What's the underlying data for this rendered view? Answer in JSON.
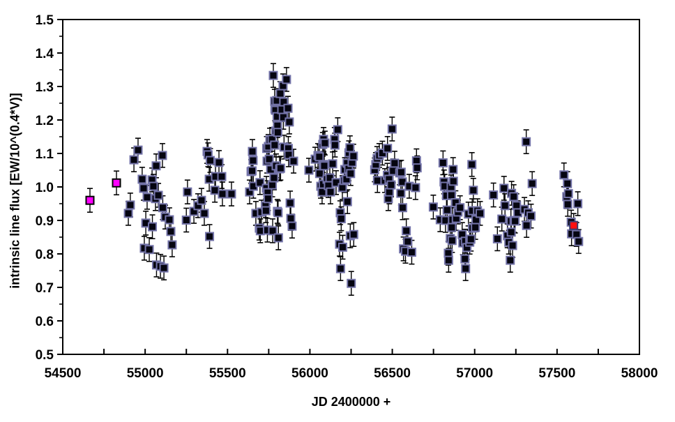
{
  "chart_data": {
    "type": "scatter",
    "title": "",
    "xlabel": "JD 2400000 +",
    "ylabel": "intrinsic line flux [EW/10^(0.4*V)]",
    "xlim": [
      54500,
      58000
    ],
    "ylim": [
      0.5,
      1.5
    ],
    "grid": false,
    "legend_position": "none",
    "x_tick_labels": [
      "54500",
      "55000",
      "55500",
      "56000",
      "56500",
      "57000",
      "57500",
      "58000"
    ],
    "x_major_ticks": [
      54500,
      55000,
      55500,
      56000,
      56500,
      57000,
      57500,
      58000
    ],
    "x_minor_step": 250,
    "y_tick_labels": [
      "0.5",
      "0.6",
      "0.7",
      "0.8",
      "0.9",
      "1.0",
      "1.1",
      "1.2",
      "1.3",
      "1.4",
      "1.5"
    ],
    "y_major_ticks": [
      0.5,
      0.6,
      0.7,
      0.8,
      0.9,
      1.0,
      1.1,
      1.2,
      1.3,
      1.4,
      1.5
    ],
    "y_minor_step": 0.05,
    "marker": {
      "size": 11,
      "error": 0.024,
      "error_color": "#000000",
      "cap_width": 8
    },
    "series": [
      {
        "name": "black-squares",
        "fill": "#050510",
        "stroke": "#7373a8",
        "points": [
          [
            54898,
            0.921
          ],
          [
            54910,
            0.946
          ],
          [
            54932,
            1.081
          ],
          [
            54957,
            1.11
          ],
          [
            54982,
            1.023
          ],
          [
            54991,
            0.996
          ],
          [
            54995,
            0.817
          ],
          [
            55004,
            0.892
          ],
          [
            55012,
            0.969
          ],
          [
            55025,
            0.813
          ],
          [
            55042,
            1.021
          ],
          [
            55044,
            0.881
          ],
          [
            55050,
            1.002
          ],
          [
            55063,
            0.965
          ],
          [
            55067,
            1.063
          ],
          [
            55069,
            0.767
          ],
          [
            55080,
            0.975
          ],
          [
            55093,
            0.763
          ],
          [
            55105,
            1.094
          ],
          [
            55107,
            0.938
          ],
          [
            55114,
            0.758
          ],
          [
            55122,
            0.91
          ],
          [
            55147,
            0.902
          ],
          [
            55156,
            0.867
          ],
          [
            55164,
            0.827
          ],
          [
            55250,
            0.901
          ],
          [
            55257,
            0.985
          ],
          [
            55296,
            0.927
          ],
          [
            55321,
            0.944
          ],
          [
            55342,
            0.96
          ],
          [
            55359,
            0.921
          ],
          [
            55376,
            1.106
          ],
          [
            55382,
            1.096
          ],
          [
            55389,
            1.023
          ],
          [
            55391,
            0.852
          ],
          [
            55395,
            1.079
          ],
          [
            55423,
            0.99
          ],
          [
            55427,
            1.031
          ],
          [
            55448,
            1.073
          ],
          [
            55465,
            1.031
          ],
          [
            55469,
            0.979
          ],
          [
            55524,
            0.979
          ],
          [
            55634,
            0.985
          ],
          [
            55643,
            1.046
          ],
          [
            55649,
            1.048
          ],
          [
            55651,
            1.106
          ],
          [
            55655,
            1.079
          ],
          [
            55657,
            1.002
          ],
          [
            55672,
            0.921
          ],
          [
            55693,
            0.877
          ],
          [
            55697,
            1.013
          ],
          [
            55699,
            0.869
          ],
          [
            55706,
            0.925
          ],
          [
            55731,
            0.944
          ],
          [
            55733,
            0.929
          ],
          [
            55736,
            0.996
          ],
          [
            55738,
            1.115
          ],
          [
            55740,
            1.077
          ],
          [
            55742,
            0.871
          ],
          [
            55744,
            0.983
          ],
          [
            55746,
            0.965
          ],
          [
            55748,
            1.121
          ],
          [
            55753,
            1.083
          ],
          [
            55757,
            1.14
          ],
          [
            55762,
            1.052
          ],
          [
            55770,
            1.142
          ],
          [
            55772,
            1.006
          ],
          [
            55774,
            0.869
          ],
          [
            55778,
            1.333
          ],
          [
            55782,
            1.027
          ],
          [
            55786,
            1.256
          ],
          [
            55788,
            1.233
          ],
          [
            55786,
            1.125
          ],
          [
            55791,
            1.229
          ],
          [
            55793,
            1.167
          ],
          [
            55795,
            1.063
          ],
          [
            55799,
            1.258
          ],
          [
            55801,
            1.21
          ],
          [
            55803,
            1.183
          ],
          [
            55805,
            1.163
          ],
          [
            55803,
            0.927
          ],
          [
            55807,
            0.923
          ],
          [
            55809,
            0.848
          ],
          [
            55816,
            1.054
          ],
          [
            55820,
            1.279
          ],
          [
            55822,
            1.056
          ],
          [
            55829,
            1.231
          ],
          [
            55837,
            1.302
          ],
          [
            55839,
            1.208
          ],
          [
            55841,
            1.254
          ],
          [
            55843,
            1.119
          ],
          [
            55858,
            1.321
          ],
          [
            55867,
            1.235
          ],
          [
            55869,
            1.115
          ],
          [
            55871,
            1.096
          ],
          [
            55875,
            1.194
          ],
          [
            55880,
            0.952
          ],
          [
            55884,
            0.906
          ],
          [
            55892,
            0.883
          ],
          [
            55901,
            1.077
          ],
          [
            55994,
            1.05
          ],
          [
            56032,
            1.083
          ],
          [
            56049,
            1.094
          ],
          [
            56057,
            1.09
          ],
          [
            56059,
            1.04
          ],
          [
            56066,
            1.002
          ],
          [
            56074,
            0.985
          ],
          [
            56078,
            1.127
          ],
          [
            56080,
            1.008
          ],
          [
            56082,
            1.067
          ],
          [
            56083,
            1.142
          ],
          [
            56087,
            1.063
          ],
          [
            56091,
            1.131
          ],
          [
            56104,
            1.023
          ],
          [
            56112,
            1.004
          ],
          [
            56121,
            1.027
          ],
          [
            56125,
            0.985
          ],
          [
            56138,
            1.069
          ],
          [
            56150,
            1.142
          ],
          [
            56152,
            1.125
          ],
          [
            56159,
            1.013
          ],
          [
            56169,
            1.171
          ],
          [
            56180,
            0.829
          ],
          [
            56184,
            0.923
          ],
          [
            56186,
            0.756
          ],
          [
            56190,
            0.905
          ],
          [
            56197,
            0.998
          ],
          [
            56199,
            0.82
          ],
          [
            56209,
            1.019
          ],
          [
            56212,
            1.052
          ],
          [
            56222,
            1.023
          ],
          [
            56226,
            1.071
          ],
          [
            56228,
            0.956
          ],
          [
            56235,
            1.054
          ],
          [
            56237,
            1.102
          ],
          [
            56243,
            1.117
          ],
          [
            56245,
            0.854
          ],
          [
            56247,
            1.04
          ],
          [
            56251,
            0.712
          ],
          [
            56256,
            1.073
          ],
          [
            56264,
            1.092
          ],
          [
            56266,
            0.858
          ],
          [
            56393,
            1.051
          ],
          [
            56400,
            1.067
          ],
          [
            56408,
            1.085
          ],
          [
            56410,
            1.019
          ],
          [
            56421,
            1.094
          ],
          [
            56440,
            1.101
          ],
          [
            56455,
            1.019
          ],
          [
            56470,
            1.035
          ],
          [
            56471,
            1.115
          ],
          [
            56476,
            0.965
          ],
          [
            56480,
            1.023
          ],
          [
            56482,
            0.985
          ],
          [
            56493,
            1.006
          ],
          [
            56499,
            1.173
          ],
          [
            56505,
            1.048
          ],
          [
            56514,
            1.071
          ],
          [
            56545,
            1.042
          ],
          [
            56552,
            0.981
          ],
          [
            56554,
            1.044
          ],
          [
            56561,
            1.015
          ],
          [
            56563,
            0.938
          ],
          [
            56568,
            0.815
          ],
          [
            56580,
            0.808
          ],
          [
            56585,
            0.869
          ],
          [
            56594,
            0.837
          ],
          [
            56603,
            1.002
          ],
          [
            56618,
            0.805
          ],
          [
            56641,
            0.998
          ],
          [
            56647,
            1.078
          ],
          [
            56651,
            1.057
          ],
          [
            56749,
            0.94
          ],
          [
            56791,
            0.902
          ],
          [
            56808,
            1.072
          ],
          [
            56814,
            1.015
          ],
          [
            56818,
            1.002
          ],
          [
            56823,
            0.9
          ],
          [
            56829,
            0.974
          ],
          [
            56833,
            0.931
          ],
          [
            56840,
            0.802
          ],
          [
            56842,
            0.781
          ],
          [
            56852,
            0.846
          ],
          [
            56857,
            1.0
          ],
          [
            56859,
            0.975
          ],
          [
            56861,
            0.879
          ],
          [
            56863,
            0.84
          ],
          [
            56865,
            0.902
          ],
          [
            56869,
            1.052
          ],
          [
            56871,
            1.017
          ],
          [
            56884,
            0.953
          ],
          [
            56888,
            0.906
          ],
          [
            56899,
            0.925
          ],
          [
            56911,
            0.938
          ],
          [
            56924,
            0.858
          ],
          [
            56928,
            0.833
          ],
          [
            56941,
            0.785
          ],
          [
            56943,
            0.838
          ],
          [
            56945,
            0.756
          ],
          [
            56953,
            0.819
          ],
          [
            56962,
            0.919
          ],
          [
            56970,
            0.835
          ],
          [
            56977,
            0.844
          ],
          [
            56983,
            1.067
          ],
          [
            56985,
            0.929
          ],
          [
            56987,
            0.877
          ],
          [
            56992,
            0.99
          ],
          [
            57004,
            0.879
          ],
          [
            57008,
            0.902
          ],
          [
            57017,
            0.929
          ],
          [
            57033,
            0.921
          ],
          [
            57114,
            0.976
          ],
          [
            57138,
            0.845
          ],
          [
            57165,
            0.904
          ],
          [
            57178,
            0.996
          ],
          [
            57184,
            0.944
          ],
          [
            57199,
            0.854
          ],
          [
            57207,
            0.835
          ],
          [
            57216,
            0.781
          ],
          [
            57220,
            0.898
          ],
          [
            57222,
            0.865
          ],
          [
            57224,
            0.981
          ],
          [
            57230,
            0.825
          ],
          [
            57237,
            0.971
          ],
          [
            57239,
            0.9
          ],
          [
            57245,
            0.898
          ],
          [
            57254,
            0.944
          ],
          [
            57262,
            0.923
          ],
          [
            57302,
            0.933
          ],
          [
            57313,
            1.135
          ],
          [
            57315,
            0.885
          ],
          [
            57325,
            0.923
          ],
          [
            57342,
            0.913
          ],
          [
            57349,
            1.01
          ],
          [
            57542,
            1.036
          ],
          [
            57559,
            0.971
          ],
          [
            57563,
            1.01
          ],
          [
            57565,
            0.948
          ],
          [
            57569,
            0.98
          ],
          [
            57586,
            0.895
          ],
          [
            57588,
            0.86
          ],
          [
            57618,
            0.858
          ],
          [
            57626,
            0.95
          ],
          [
            57631,
            0.837
          ]
        ]
      },
      {
        "name": "magenta-squares",
        "fill": "#ff00ff",
        "stroke": "#000000",
        "points": [
          [
            54665,
            0.96
          ],
          [
            54826,
            1.012
          ]
        ]
      },
      {
        "name": "red-square",
        "fill": "#ff1010",
        "stroke": "#3a3a6b",
        "points": [
          [
            57601,
            0.885
          ]
        ]
      }
    ]
  },
  "axis_titles": {
    "x": "JD 2400000 +",
    "y": "intrinsic line flux [EW/10^(0.4*V)]"
  }
}
